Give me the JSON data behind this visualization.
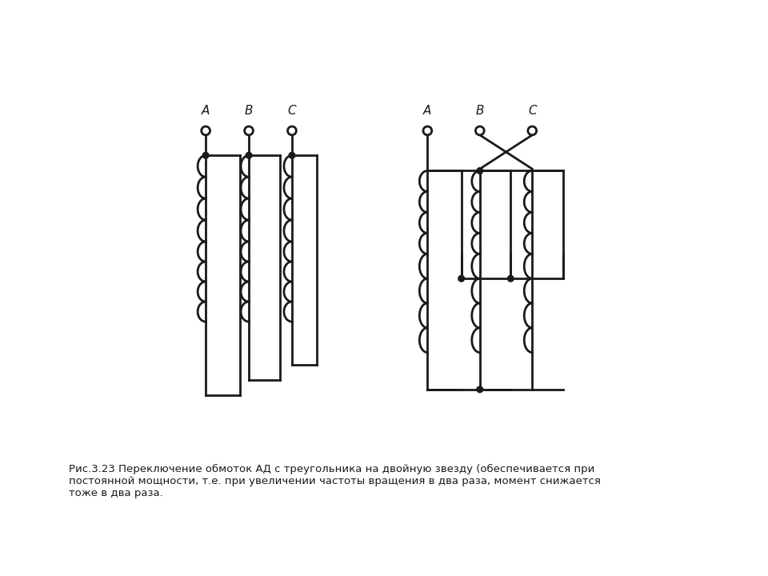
{
  "bg_color": "#ffffff",
  "line_color": "#1a1a1a",
  "lw": 2.0,
  "caption": "Рис.3.23 Переключение обмоток АД с треугольника на двойную звезду (обеспечивается при\nпостоянной мощности, т.е. при увеличении частоты вращения в два раза, момент снижается\nтоже в два раза.",
  "left_labels": [
    "А",
    "В",
    "С"
  ],
  "right_labels": [
    "А",
    "В",
    "С"
  ],
  "fig_w": 9.6,
  "fig_h": 7.2
}
